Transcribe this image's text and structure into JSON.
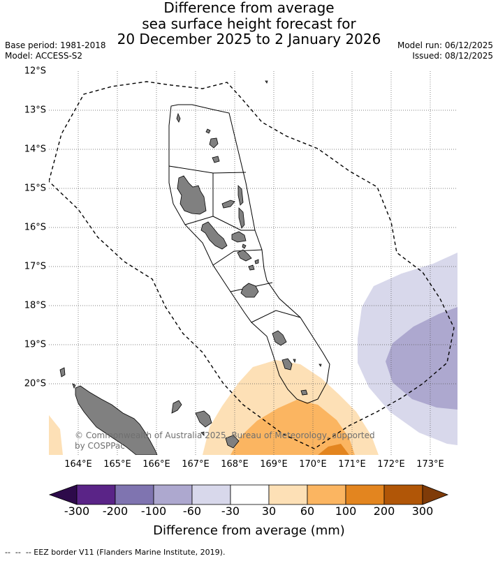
{
  "title": {
    "line1": "Difference from average",
    "line2": "sea surface height forecast for",
    "line3": "20 December 2025 to 2 January 2026"
  },
  "meta": {
    "base_period": "Base period: 1981-2018",
    "model": "Model: ACCESS-S2",
    "model_run": "Model run: 06/12/2025",
    "issued": "Issued: 08/12/2025"
  },
  "map": {
    "lat_labels": [
      "12°S",
      "13°S",
      "14°S",
      "15°S",
      "16°S",
      "17°S",
      "18°S",
      "19°S",
      "20°S"
    ],
    "lon_labels": [
      "164°E",
      "165°E",
      "166°E",
      "167°E",
      "168°E",
      "169°E",
      "170°E",
      "171°E",
      "172°E",
      "173°E"
    ],
    "copyright_line1": "© Commonwealth of Australia 2025, Bureau of Meteorology, supported",
    "copyright_line2": "by COSPPac"
  },
  "colorbar": {
    "colors": {
      "lt300": "#2d0a4a",
      "m300": "#5a2487",
      "m200": "#7f74b0",
      "m100": "#ada8cf",
      "m60": "#d8d8eb",
      "neutral": "#ffffff",
      "p30": "#fde0b6",
      "p60": "#fbb561",
      "p100": "#e3851f",
      "p200": "#b15607",
      "gt300": "#7f3b08"
    },
    "ticks": [
      "-300",
      "-200",
      "-100",
      "-60",
      "-30",
      "30",
      "60",
      "100",
      "200",
      "300"
    ],
    "label": "Difference from average (mm)"
  },
  "footnote": "--  --  -- EEZ border V11 (Flanders Marine Institute, 2019)."
}
